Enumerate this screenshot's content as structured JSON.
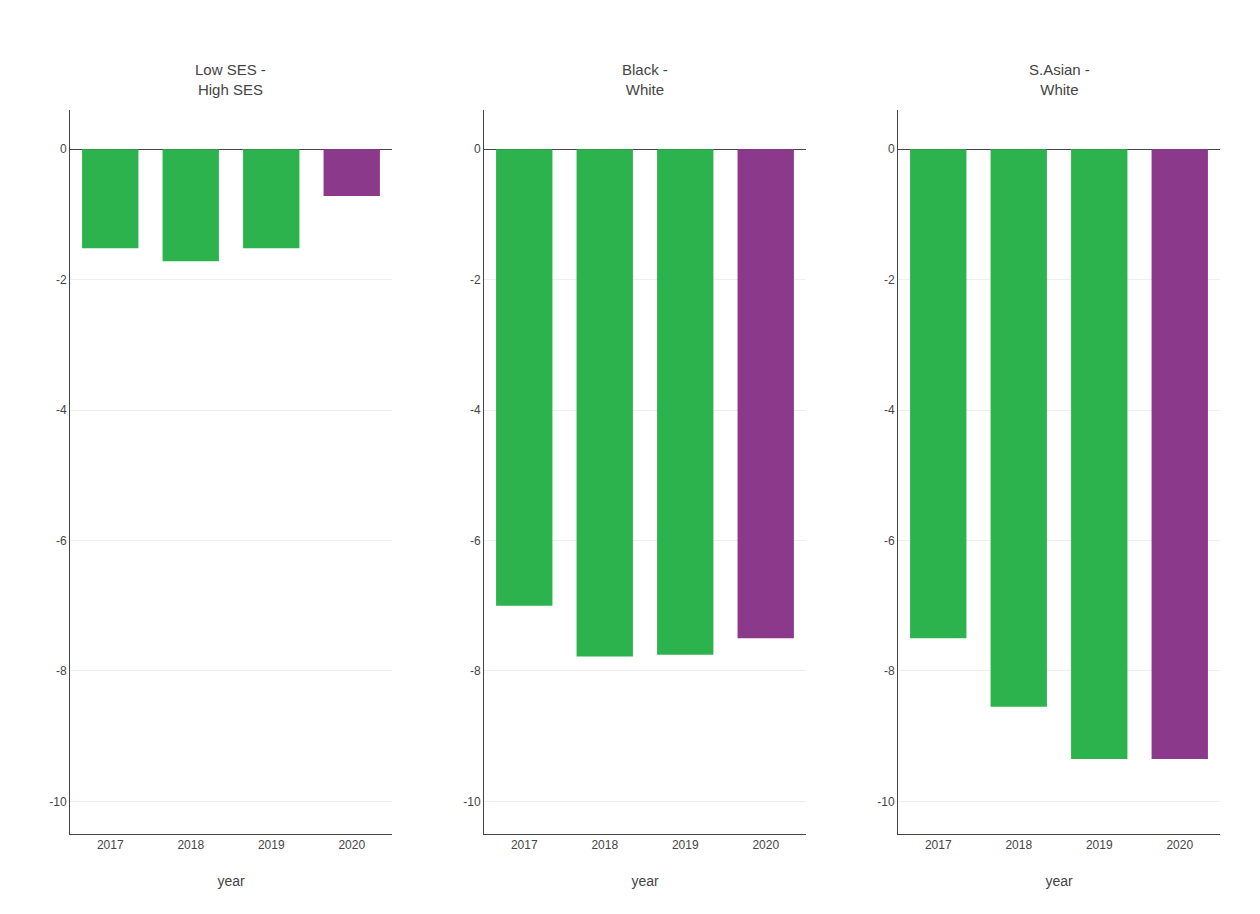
{
  "chart_data": [
    {
      "type": "bar",
      "title": "Low SES -\nHigh SES",
      "categories": [
        "2017",
        "2018",
        "2019",
        "2020"
      ],
      "values": [
        -1.52,
        -1.72,
        -1.52,
        -0.72
      ],
      "colors": [
        "#2db34e",
        "#2db34e",
        "#2db34e",
        "#8b3a8b"
      ],
      "xlabel": "year",
      "ylim": [
        -10.5,
        0.6
      ],
      "yticks": [
        0,
        -2,
        -4,
        -6,
        -8,
        -10
      ],
      "grid": true
    },
    {
      "type": "bar",
      "title": "Black -\nWhite",
      "categories": [
        "2017",
        "2018",
        "2019",
        "2020"
      ],
      "values": [
        -7.0,
        -7.78,
        -7.75,
        -7.5
      ],
      "colors": [
        "#2db34e",
        "#2db34e",
        "#2db34e",
        "#8b3a8b"
      ],
      "xlabel": "year",
      "ylim": [
        -10.5,
        0.6
      ],
      "yticks": [
        0,
        -2,
        -4,
        -6,
        -8,
        -10
      ],
      "grid": true
    },
    {
      "type": "bar",
      "title": "S.Asian -\nWhite",
      "categories": [
        "2017",
        "2018",
        "2019",
        "2020"
      ],
      "values": [
        -7.5,
        -8.55,
        -9.35,
        -9.35
      ],
      "colors": [
        "#2db34e",
        "#2db34e",
        "#2db34e",
        "#8b3a8b"
      ],
      "xlabel": "year",
      "ylim": [
        -10.5,
        0.6
      ],
      "yticks": [
        0,
        -2,
        -4,
        -6,
        -8,
        -10
      ],
      "grid": true
    }
  ]
}
